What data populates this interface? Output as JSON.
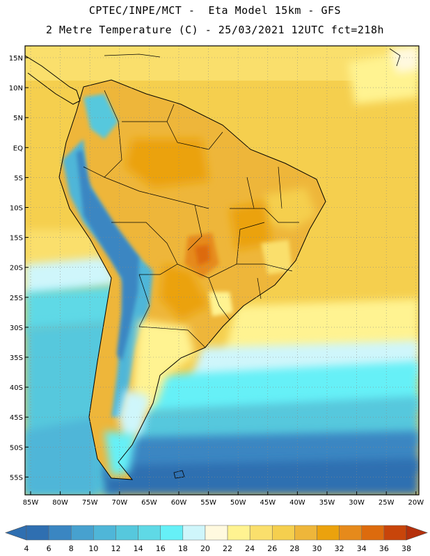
{
  "header": {
    "line1": "CPTEC/INPE/MCT -  Eta Model 15km - GFS",
    "line2": "2 Metre Temperature (C) - 25/03/2021 12UTC fct=218h"
  },
  "map": {
    "lat_labels": [
      "15N",
      "10N",
      "5N",
      "EQ",
      "5S",
      "10S",
      "15S",
      "20S",
      "25S",
      "30S",
      "35S",
      "40S",
      "45S",
      "50S",
      "55S"
    ],
    "lon_labels": [
      "85W",
      "80W",
      "75W",
      "70W",
      "65W",
      "60W",
      "55W",
      "50W",
      "45W",
      "40W",
      "35W",
      "30W",
      "25W",
      "20W"
    ]
  },
  "colorbar": {
    "labels": [
      "4",
      "6",
      "8",
      "10",
      "12",
      "14",
      "16",
      "18",
      "20",
      "22",
      "24",
      "26",
      "28",
      "30",
      "32",
      "34",
      "36",
      "38"
    ],
    "colors": [
      "#2f6fb1",
      "#3a86c2",
      "#47a1cf",
      "#4fb6d8",
      "#56c8dd",
      "#5fd9e6",
      "#66f0f7",
      "#cff6fb",
      "#fff9df",
      "#fff391",
      "#fadf6c",
      "#f5cf4e",
      "#eeb63a",
      "#eba20d",
      "#e68a1b",
      "#dd6b0d",
      "#c8450a",
      "#b5300b"
    ],
    "low_color": "#2f6fb1",
    "high_color": "#b5300b"
  }
}
